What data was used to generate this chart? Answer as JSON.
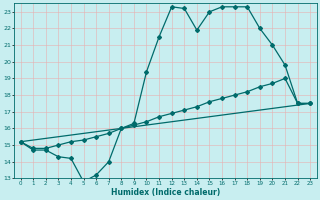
{
  "xlabel": "Humidex (Indice chaleur)",
  "ylabel": "",
  "xlim": [
    -0.5,
    23.5
  ],
  "ylim": [
    13,
    23.5
  ],
  "yticks": [
    13,
    14,
    15,
    16,
    17,
    18,
    19,
    20,
    21,
    22,
    23
  ],
  "xticks": [
    0,
    1,
    2,
    3,
    4,
    5,
    6,
    7,
    8,
    9,
    10,
    11,
    12,
    13,
    14,
    15,
    16,
    17,
    18,
    19,
    20,
    21,
    22,
    23
  ],
  "bg_color": "#c8eef0",
  "grid_color": "#e8b0b0",
  "line_color": "#006b6b",
  "line1_x": [
    0,
    1,
    2,
    3,
    4,
    5,
    6,
    7,
    8,
    9,
    10,
    11,
    12,
    13,
    14,
    15,
    16,
    17,
    18,
    19,
    20,
    21,
    22,
    23
  ],
  "line1_y": [
    15.2,
    14.7,
    14.7,
    14.3,
    14.2,
    12.8,
    13.2,
    14.0,
    16.0,
    16.3,
    19.4,
    21.5,
    23.3,
    23.2,
    21.9,
    23.0,
    23.3,
    23.3,
    23.3,
    22.0,
    21.0,
    19.8,
    17.5,
    17.5
  ],
  "line2_x": [
    0,
    1,
    2,
    3,
    4,
    5,
    6,
    7,
    8,
    9,
    10,
    11,
    12,
    13,
    14,
    15,
    16,
    17,
    18,
    19,
    20,
    21,
    22,
    23
  ],
  "line2_y": [
    15.2,
    14.8,
    14.8,
    15.0,
    15.2,
    15.3,
    15.5,
    15.7,
    16.0,
    16.2,
    16.4,
    16.7,
    16.9,
    17.1,
    17.3,
    17.6,
    17.8,
    18.0,
    18.2,
    18.5,
    18.7,
    19.0,
    17.5,
    17.5
  ],
  "line3_x": [
    0,
    23
  ],
  "line3_y": [
    15.2,
    17.5
  ],
  "marker_size": 2.0,
  "line_width": 0.9
}
